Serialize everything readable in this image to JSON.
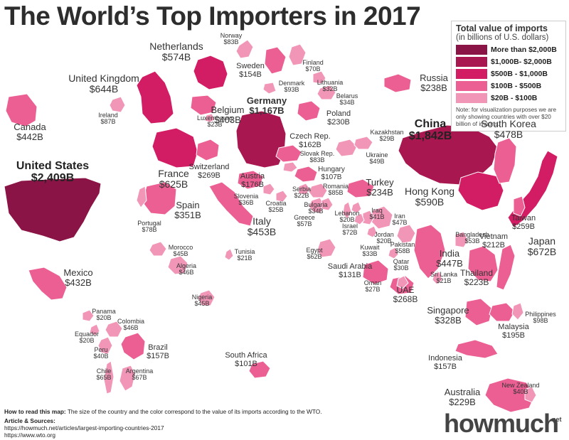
{
  "chart_data": {
    "type": "map",
    "title": "The World’s Top Importers in 2017",
    "legend": {
      "title": "Total value of imports",
      "subtitle": "(in billions of U.S. dollars)",
      "items": [
        {
          "label": "More than $2,000B",
          "color": "#8a1445"
        },
        {
          "label": "$1,000B- $2,000B",
          "color": "#a8174f"
        },
        {
          "label": "$500B - $1,000B",
          "color": "#d21c63"
        },
        {
          "label": "$100B - $500B",
          "color": "#ec5f92"
        },
        {
          "label": "$20B - $100B",
          "color": "#f296b7"
        }
      ],
      "note": "Note: for visualization purposes we are only showing countries with over $20 billion of imports."
    },
    "countries": [
      {
        "name": "United States",
        "value": "$2,409B",
        "tier": 0
      },
      {
        "name": "China",
        "value": "$1,842B",
        "tier": 1
      },
      {
        "name": "Germany",
        "value": "$1,167B",
        "tier": 1
      },
      {
        "name": "Japan",
        "value": "$672B",
        "tier": 2
      },
      {
        "name": "United Kingdom",
        "value": "$644B",
        "tier": 2
      },
      {
        "name": "France",
        "value": "$625B",
        "tier": 2
      },
      {
        "name": "Hong Kong",
        "value": "$590B",
        "tier": 2
      },
      {
        "name": "Netherlands",
        "value": "$574B",
        "tier": 2
      },
      {
        "name": "South Korea",
        "value": "$478B",
        "tier": 3
      },
      {
        "name": "Italy",
        "value": "$453B",
        "tier": 3
      },
      {
        "name": "India",
        "value": "$447B",
        "tier": 3
      },
      {
        "name": "Canada",
        "value": "$442B",
        "tier": 3
      },
      {
        "name": "Mexico",
        "value": "$432B",
        "tier": 3
      },
      {
        "name": "Belgium",
        "value": "$403B",
        "tier": 3
      },
      {
        "name": "Spain",
        "value": "$351B",
        "tier": 3
      },
      {
        "name": "Singapore",
        "value": "$328B",
        "tier": 3
      },
      {
        "name": "Switzerland",
        "value": "$269B",
        "tier": 3
      },
      {
        "name": "UAE",
        "value": "$268B",
        "tier": 3
      },
      {
        "name": "Taiwan",
        "value": "$259B",
        "tier": 3
      },
      {
        "name": "Russia",
        "value": "$238B",
        "tier": 3
      },
      {
        "name": "Turkey",
        "value": "$234B",
        "tier": 3
      },
      {
        "name": "Poland",
        "value": "$230B",
        "tier": 3
      },
      {
        "name": "Australia",
        "value": "$229B",
        "tier": 3
      },
      {
        "name": "Thailand",
        "value": "$223B",
        "tier": 3
      },
      {
        "name": "Vietnam",
        "value": "$212B",
        "tier": 3
      },
      {
        "name": "Malaysia",
        "value": "$195B",
        "tier": 3
      },
      {
        "name": "Austria",
        "value": "$176B",
        "tier": 3
      },
      {
        "name": "Czech Rep.",
        "value": "$162B",
        "tier": 3
      },
      {
        "name": "Brazil",
        "value": "$157B",
        "tier": 3
      },
      {
        "name": "Indonesia",
        "value": "$157B",
        "tier": 3
      },
      {
        "name": "Sweden",
        "value": "$154B",
        "tier": 3
      },
      {
        "name": "Saudi Arabia",
        "value": "$131B",
        "tier": 3
      },
      {
        "name": "Hungary",
        "value": "$107B",
        "tier": 3
      },
      {
        "name": "South Africa",
        "value": "$101B",
        "tier": 3
      },
      {
        "name": "Philippines",
        "value": "$98B",
        "tier": 4
      },
      {
        "name": "Denmark",
        "value": "$93B",
        "tier": 4
      },
      {
        "name": "Ireland",
        "value": "$87B",
        "tier": 4
      },
      {
        "name": "Romania",
        "value": "$85B",
        "tier": 4
      },
      {
        "name": "Norway",
        "value": "$83B",
        "tier": 4
      },
      {
        "name": "Slovak Rep.",
        "value": "$83B",
        "tier": 4
      },
      {
        "name": "Portugal",
        "value": "$78B",
        "tier": 4
      },
      {
        "name": "Israel",
        "value": "$72B",
        "tier": 4
      },
      {
        "name": "Finland",
        "value": "$70B",
        "tier": 4
      },
      {
        "name": "Chile",
        "value": "$65B",
        "tier": 4
      },
      {
        "name": "Argentina",
        "value": "$67B",
        "tier": 4
      },
      {
        "name": "Egypt",
        "value": "$62B",
        "tier": 4
      },
      {
        "name": "Pakistan",
        "value": "$58B",
        "tier": 4
      },
      {
        "name": "Greece",
        "value": "$57B",
        "tier": 4
      },
      {
        "name": "Bangladesh",
        "value": "$53B",
        "tier": 4
      },
      {
        "name": "Ukraine",
        "value": "$49B",
        "tier": 4
      },
      {
        "name": "Iran",
        "value": "$47B",
        "tier": 4
      },
      {
        "name": "Algeria",
        "value": "$46B",
        "tier": 4
      },
      {
        "name": "Colombia",
        "value": "$46B",
        "tier": 4
      },
      {
        "name": "Morocco",
        "value": "$45B",
        "tier": 4
      },
      {
        "name": "Nigeria",
        "value": "$45B",
        "tier": 4
      },
      {
        "name": "Iraq",
        "value": "$41B",
        "tier": 4
      },
      {
        "name": "Peru",
        "value": "$40B",
        "tier": 4
      },
      {
        "name": "New Zealand",
        "value": "$40B",
        "tier": 4
      },
      {
        "name": "Slovenia",
        "value": "$36B",
        "tier": 4
      },
      {
        "name": "Belarus",
        "value": "$34B",
        "tier": 4
      },
      {
        "name": "Bulgaria",
        "value": "$34B",
        "tier": 4
      },
      {
        "name": "Kuwait",
        "value": "$33B",
        "tier": 4
      },
      {
        "name": "Lithuania",
        "value": "$32B",
        "tier": 4
      },
      {
        "name": "Qatar",
        "value": "$30B",
        "tier": 4
      },
      {
        "name": "Kazakhstan",
        "value": "$29B",
        "tier": 4
      },
      {
        "name": "Oman",
        "value": "$27B",
        "tier": 4
      },
      {
        "name": "Croatia",
        "value": "$25B",
        "tier": 4
      },
      {
        "name": "Luxembourg",
        "value": "$23B",
        "tier": 4
      },
      {
        "name": "Serbia",
        "value": "$22B",
        "tier": 4
      },
      {
        "name": "Tunisia",
        "value": "$21B",
        "tier": 4
      },
      {
        "name": "Sri Lanka",
        "value": "$21B",
        "tier": 4
      },
      {
        "name": "Panama",
        "value": "$20B",
        "tier": 4
      },
      {
        "name": "Equador",
        "value": "$20B",
        "tier": 4
      },
      {
        "name": "Lebanon",
        "value": "$20B",
        "tier": 4
      },
      {
        "name": "Jordan",
        "value": "$20B",
        "tier": 4
      }
    ]
  },
  "footer": {
    "howto_label": "How to read this map:",
    "howto_text": "The size of the country and the color correspond to the value of its imports according to the WTO.",
    "sources_label": "Article & Sources:",
    "source1": "https://howmuch.net/articles/largest-importing-countries-2017",
    "source2": "https://www.wto.org"
  },
  "brand": {
    "name": "howmuch",
    "suffix": "net"
  }
}
